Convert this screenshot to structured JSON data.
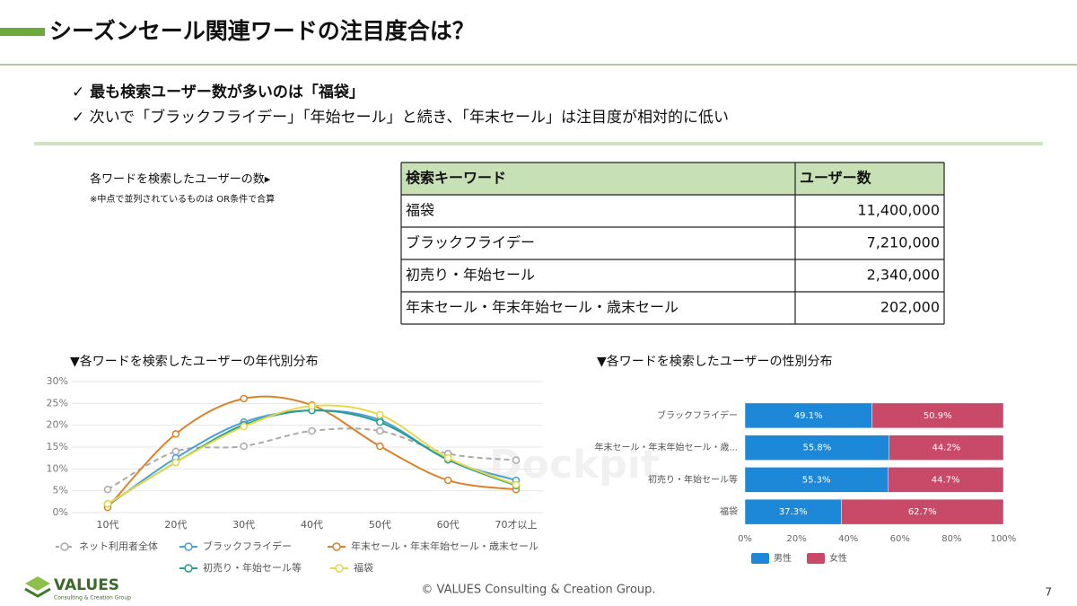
{
  "header": {
    "title": "シーズンセール関連ワードの注目度合は？"
  },
  "bullets": [
    "✓ 最も検索ユーザー数が多いのは「福袋」",
    "✓ 次いで「ブラックフライデー」「年始セール」と続き、「年末セール」は注目度が相対的に低い"
  ],
  "note": {
    "title": "各ワードを検索したユーザーの数▸",
    "text": "※中点で並列されているものは OR条件で合算"
  },
  "table": {
    "columns": [
      "検索キーワード",
      "ユーザー数"
    ],
    "rows": [
      [
        "福袋",
        "11,400,000"
      ],
      [
        "ブラックフライデー",
        "7,210,000"
      ],
      [
        "初売り・年始セール",
        "2,340,000"
      ],
      [
        "年末セール・年末年始セール・歳末セール",
        "202,000"
      ]
    ]
  },
  "watermark": "Dockpit",
  "chart_data": [
    {
      "type": "line",
      "title": "▼各ワードを検索したユーザーの年代別分布",
      "categories": [
        "10代",
        "20代",
        "30代",
        "40代",
        "50代",
        "60代",
        "70才以上"
      ],
      "ylim": [
        0,
        30
      ],
      "yticks": [
        {
          "value": 0,
          "label": "0%"
        },
        {
          "value": 5,
          "label": "5%"
        },
        {
          "value": 10,
          "label": "10%"
        },
        {
          "value": 15,
          "label": "15%"
        },
        {
          "value": 20,
          "label": "20%"
        },
        {
          "value": 25,
          "label": "25%"
        },
        {
          "value": 30,
          "label": "30%"
        }
      ],
      "grid": true,
      "series": [
        {
          "name": "ネット利用者全体",
          "color": "#aaaaaa",
          "dashed": true,
          "values": [
            5.3,
            14,
            15.2,
            18.7,
            18.7,
            13.5,
            12
          ]
        },
        {
          "name": "ブラックフライデー",
          "color": "#4a9fd8",
          "values": [
            1.6,
            12.5,
            20.7,
            23.4,
            21.2,
            12.1,
            7.4
          ]
        },
        {
          "name": "年末セール・年末年始セール・歳末セール",
          "color": "#d9822b",
          "values": [
            1.2,
            18,
            26.1,
            24.6,
            15.2,
            7.4,
            5.3
          ]
        },
        {
          "name": "初売り・年始セール等",
          "color": "#2a9d8f",
          "values": [
            2,
            11.5,
            20.1,
            23.4,
            20.7,
            12.1,
            6.2
          ]
        },
        {
          "name": "福袋",
          "color": "#e6d84a",
          "values": [
            2,
            11.5,
            19.7,
            24.4,
            22.4,
            12.5,
            6.4
          ]
        }
      ]
    },
    {
      "type": "stacked_barh",
      "title": "▼各ワードを検索したユーザーの性別分布",
      "categories": [
        "ブラックフライデー",
        "年末セール・年末年始セール・歳...",
        "初売り・年始セール等",
        "福袋"
      ],
      "xlim": [
        0,
        100
      ],
      "xticks": [
        {
          "value": 0,
          "label": "0%"
        },
        {
          "value": 20,
          "label": "20%"
        },
        {
          "value": 40,
          "label": "40%"
        },
        {
          "value": 60,
          "label": "60%"
        },
        {
          "value": 80,
          "label": "80%"
        },
        {
          "value": 100,
          "label": "100%"
        }
      ],
      "series": [
        {
          "name": "男性",
          "color": "#1e88d8",
          "values": [
            49.1,
            55.8,
            55.3,
            37.3
          ],
          "value_labels": [
            "49.1%",
            "55.8%",
            "55.3%",
            "37.3%"
          ]
        },
        {
          "name": "女性",
          "color": "#c94a68",
          "values": [
            50.9,
            44.2,
            44.7,
            62.7
          ],
          "value_labels": [
            "50.9%",
            "44.2%",
            "44.7%",
            "62.7%"
          ]
        }
      ]
    }
  ],
  "footer": {
    "logo": "VALUES",
    "logo_sub": "Consulting & Creation Group",
    "copyright": "© VALUES Consulting & Creation Group.",
    "page": "7"
  }
}
